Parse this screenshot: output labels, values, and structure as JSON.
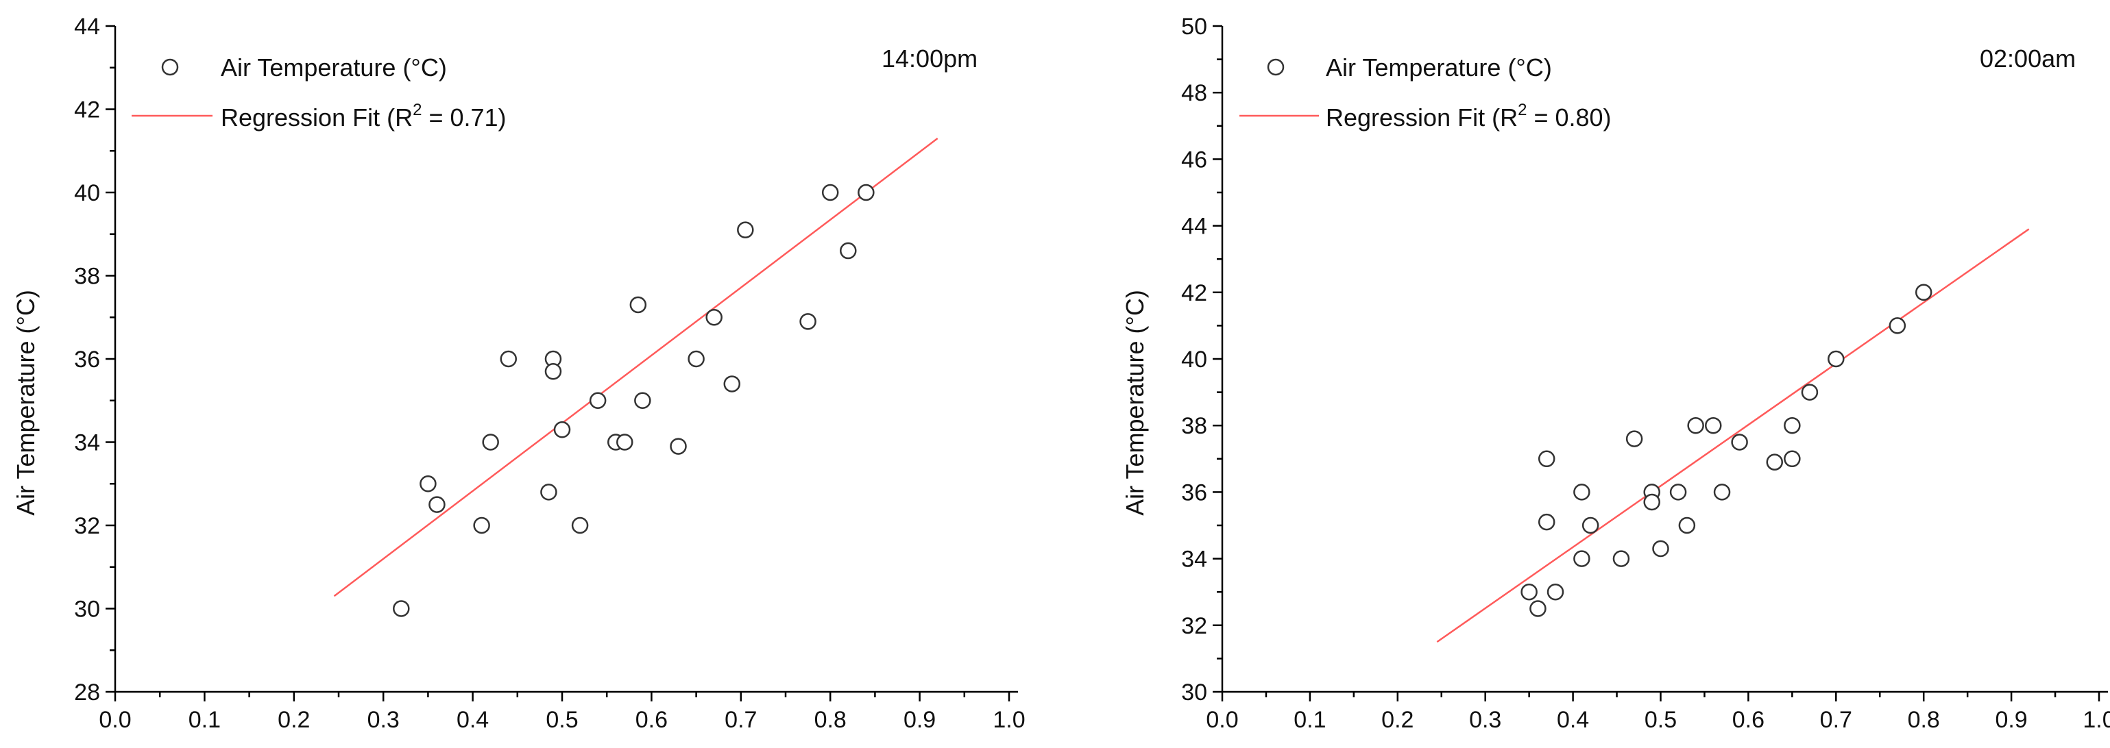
{
  "colors": {
    "fit_line": "#ff5a5a",
    "marker_edge": "#333333",
    "axis": "#000000"
  },
  "chart_data": [
    {
      "type": "scatter",
      "time_label": "14:00pm",
      "ylabel": "Air Temperature (°C)",
      "xlabel": "",
      "xlim": [
        0.0,
        1.0
      ],
      "ylim": [
        28,
        44
      ],
      "xticks": [
        "0.0",
        "0.1",
        "0.2",
        "0.3",
        "0.4",
        "0.5",
        "0.6",
        "0.7",
        "0.8",
        "0.9",
        "1.0"
      ],
      "yticks": [
        "28",
        "30",
        "32",
        "34",
        "36",
        "38",
        "40",
        "42",
        "44"
      ],
      "legend": {
        "points_label": "Air Temperature (°C)",
        "fit_label_prefix": "Regression Fit (R",
        "fit_label_sup": "2",
        "fit_label_suffix": " = 0.71)"
      },
      "fit": {
        "x": [
          0.245,
          0.92
        ],
        "y": [
          30.3,
          41.3
        ]
      },
      "points": [
        [
          0.32,
          30.0
        ],
        [
          0.35,
          33.0
        ],
        [
          0.36,
          32.5
        ],
        [
          0.41,
          32.0
        ],
        [
          0.42,
          34.0
        ],
        [
          0.44,
          36.0
        ],
        [
          0.485,
          32.8
        ],
        [
          0.49,
          36.0
        ],
        [
          0.49,
          35.7
        ],
        [
          0.5,
          34.3
        ],
        [
          0.52,
          32.0
        ],
        [
          0.54,
          35.0
        ],
        [
          0.56,
          34.0
        ],
        [
          0.57,
          34.0
        ],
        [
          0.585,
          37.3
        ],
        [
          0.59,
          35.0
        ],
        [
          0.63,
          33.9
        ],
        [
          0.65,
          36.0
        ],
        [
          0.67,
          37.0
        ],
        [
          0.69,
          35.4
        ],
        [
          0.705,
          39.1
        ],
        [
          0.775,
          36.9
        ],
        [
          0.8,
          40.0
        ],
        [
          0.82,
          38.6
        ],
        [
          0.84,
          40.0
        ]
      ]
    },
    {
      "type": "scatter",
      "time_label": "02:00am",
      "ylabel": "Air Temperature (°C)",
      "xlabel": "",
      "xlim": [
        0.0,
        1.0
      ],
      "ylim": [
        30,
        50
      ],
      "xticks": [
        "0.0",
        "0.1",
        "0.2",
        "0.3",
        "0.4",
        "0.5",
        "0.6",
        "0.7",
        "0.8",
        "0.9",
        "1.0"
      ],
      "yticks": [
        "30",
        "32",
        "34",
        "36",
        "38",
        "40",
        "42",
        "44",
        "46",
        "48",
        "50"
      ],
      "legend": {
        "points_label": "Air Temperature (°C)",
        "fit_label_prefix": "Regression Fit (R",
        "fit_label_sup": "2",
        "fit_label_suffix": " = 0.80)"
      },
      "fit": {
        "x": [
          0.245,
          0.92
        ],
        "y": [
          31.5,
          43.9
        ]
      },
      "points": [
        [
          0.35,
          33.0
        ],
        [
          0.36,
          32.5
        ],
        [
          0.37,
          37.0
        ],
        [
          0.37,
          35.1
        ],
        [
          0.38,
          33.0
        ],
        [
          0.41,
          36.0
        ],
        [
          0.41,
          34.0
        ],
        [
          0.42,
          35.0
        ],
        [
          0.455,
          34.0
        ],
        [
          0.47,
          37.6
        ],
        [
          0.49,
          36.0
        ],
        [
          0.49,
          35.7
        ],
        [
          0.5,
          34.3
        ],
        [
          0.52,
          36.0
        ],
        [
          0.53,
          35.0
        ],
        [
          0.54,
          38.0
        ],
        [
          0.56,
          38.0
        ],
        [
          0.57,
          36.0
        ],
        [
          0.59,
          37.5
        ],
        [
          0.63,
          36.9
        ],
        [
          0.65,
          38.0
        ],
        [
          0.65,
          37.0
        ],
        [
          0.67,
          39.0
        ],
        [
          0.7,
          40.0
        ],
        [
          0.77,
          41.0
        ],
        [
          0.8,
          42.0
        ]
      ]
    }
  ]
}
